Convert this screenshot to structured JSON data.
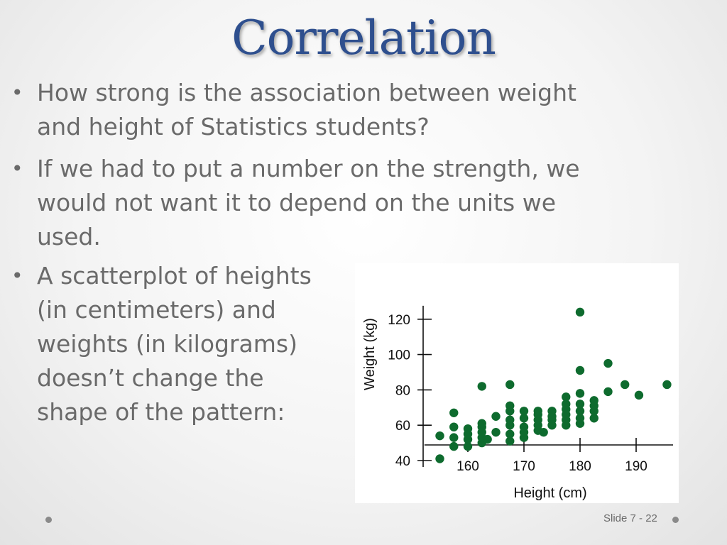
{
  "slide": {
    "title": "Correlation",
    "bullets": [
      "How strong is the association between weight\nand height of Statistics students?",
      "If we had to put a number on the strength, we\nwould not want it to depend on the units we\nused.",
      "A scatterplot of heights\n (in centimeters) and\nweights (in kilograms)\ndoesn’t change the\nshape of the pattern:"
    ],
    "bullet_symbol": "•",
    "slide_number": "Slide 7 - 22"
  },
  "colors": {
    "title": "#2e4f8e",
    "text": "#6a6a6a",
    "points": "#0e6b2e"
  },
  "chart_data": {
    "type": "scatter",
    "xlabel": "Height (cm)",
    "ylabel": "Weight (kg)",
    "xlim": [
      152,
      198
    ],
    "ylim": [
      38,
      126
    ],
    "x_ticks": [
      160,
      170,
      180,
      190
    ],
    "x_tick_labels": [
      "160",
      "170",
      "180",
      "190"
    ],
    "y_ticks": [
      40,
      60,
      80,
      100,
      120
    ],
    "y_tick_labels": [
      "40",
      "60",
      "80",
      "100",
      "120"
    ],
    "grid": false,
    "points": [
      {
        "x": 155,
        "y": 41
      },
      {
        "x": 155,
        "y": 54
      },
      {
        "x": 157.5,
        "y": 48
      },
      {
        "x": 157.5,
        "y": 53
      },
      {
        "x": 157.5,
        "y": 59
      },
      {
        "x": 157.5,
        "y": 67
      },
      {
        "x": 160,
        "y": 48
      },
      {
        "x": 160,
        "y": 52
      },
      {
        "x": 160,
        "y": 55
      },
      {
        "x": 160,
        "y": 58
      },
      {
        "x": 162.5,
        "y": 50
      },
      {
        "x": 162.5,
        "y": 53
      },
      {
        "x": 162.5,
        "y": 56
      },
      {
        "x": 162.5,
        "y": 59
      },
      {
        "x": 162.5,
        "y": 61
      },
      {
        "x": 162.5,
        "y": 82
      },
      {
        "x": 163.5,
        "y": 52
      },
      {
        "x": 165,
        "y": 56
      },
      {
        "x": 165,
        "y": 65
      },
      {
        "x": 167.5,
        "y": 51
      },
      {
        "x": 167.5,
        "y": 55
      },
      {
        "x": 167.5,
        "y": 60
      },
      {
        "x": 167.5,
        "y": 63
      },
      {
        "x": 167.5,
        "y": 68
      },
      {
        "x": 167.5,
        "y": 71
      },
      {
        "x": 167.5,
        "y": 83
      },
      {
        "x": 170,
        "y": 53
      },
      {
        "x": 170,
        "y": 56
      },
      {
        "x": 170,
        "y": 59
      },
      {
        "x": 170,
        "y": 64
      },
      {
        "x": 170,
        "y": 68
      },
      {
        "x": 172.5,
        "y": 57
      },
      {
        "x": 172.5,
        "y": 60
      },
      {
        "x": 172.5,
        "y": 63
      },
      {
        "x": 172.5,
        "y": 66
      },
      {
        "x": 172.5,
        "y": 68
      },
      {
        "x": 173.5,
        "y": 56
      },
      {
        "x": 175,
        "y": 60
      },
      {
        "x": 175,
        "y": 63
      },
      {
        "x": 175,
        "y": 65
      },
      {
        "x": 175,
        "y": 68
      },
      {
        "x": 177.5,
        "y": 60
      },
      {
        "x": 177.5,
        "y": 63
      },
      {
        "x": 177.5,
        "y": 66
      },
      {
        "x": 177.5,
        "y": 69
      },
      {
        "x": 177.5,
        "y": 72
      },
      {
        "x": 177.5,
        "y": 76
      },
      {
        "x": 180,
        "y": 61
      },
      {
        "x": 180,
        "y": 64
      },
      {
        "x": 180,
        "y": 68
      },
      {
        "x": 180,
        "y": 72
      },
      {
        "x": 180,
        "y": 78
      },
      {
        "x": 180,
        "y": 91
      },
      {
        "x": 180,
        "y": 124
      },
      {
        "x": 182.5,
        "y": 64
      },
      {
        "x": 182.5,
        "y": 68
      },
      {
        "x": 182.5,
        "y": 71
      },
      {
        "x": 182.5,
        "y": 74
      },
      {
        "x": 185,
        "y": 79
      },
      {
        "x": 185,
        "y": 95
      },
      {
        "x": 188,
        "y": 83
      },
      {
        "x": 190.5,
        "y": 77
      },
      {
        "x": 195.5,
        "y": 83
      }
    ]
  }
}
